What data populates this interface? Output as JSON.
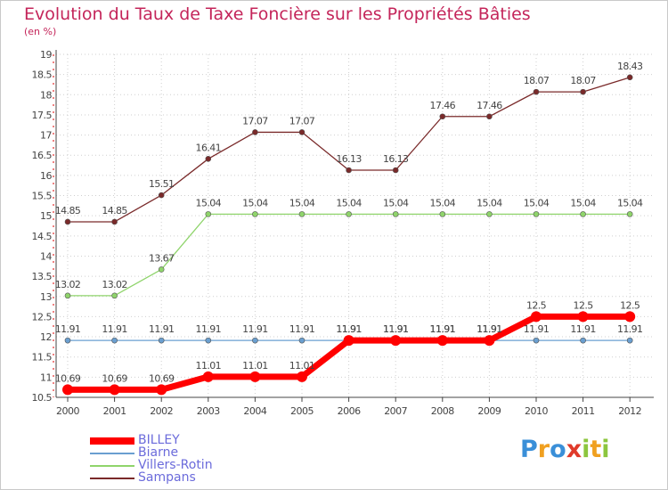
{
  "title": "Evolution du Taux de Taxe Foncière sur les Propriétés Bâties",
  "unit_label": "(en %)",
  "chart_data": {
    "type": "line",
    "title": "Evolution du Taux de Taxe Foncière sur les Propriétés Bâties",
    "ylabel": "(en %)",
    "xlabel": "",
    "ylim": [
      10.5,
      19
    ],
    "grid": true,
    "x": [
      "2000",
      "2001",
      "2002",
      "2003",
      "2004",
      "2005",
      "2006",
      "2007",
      "2008",
      "2009",
      "2010",
      "2011",
      "2012"
    ],
    "yticks": [
      "10.5",
      "11",
      "11.5",
      "12",
      "12.5",
      "13",
      "13.5",
      "14",
      "14.5",
      "15",
      "15.5",
      "16",
      "16.5",
      "17",
      "17.5",
      "18",
      "18.5",
      "19"
    ],
    "series": [
      {
        "name": "Sampans",
        "color": "#7a2a2a",
        "values": [
          14.85,
          14.85,
          15.51,
          16.41,
          17.07,
          17.07,
          16.13,
          16.13,
          17.46,
          17.46,
          18.07,
          18.07,
          18.43
        ],
        "labels": [
          "14.85",
          "14.85",
          "15.51",
          "16.41",
          "17.07",
          "17.07",
          "16.13",
          "16.13",
          "17.46",
          "17.46",
          "18.07",
          "18.07",
          "18.43"
        ]
      },
      {
        "name": "Villers-Rotin",
        "color": "#8fd46b",
        "values": [
          13.02,
          13.02,
          13.67,
          15.04,
          15.04,
          15.04,
          15.04,
          15.04,
          15.04,
          15.04,
          15.04,
          15.04,
          15.04
        ],
        "labels": [
          "13.02",
          "13.02",
          "13.67",
          "15.04",
          "15.04",
          "15.04",
          "15.04",
          "15.04",
          "15.04",
          "15.04",
          "15.04",
          "15.04",
          "15.04"
        ]
      },
      {
        "name": "Biarne",
        "color": "#6a9fd0",
        "values": [
          11.91,
          11.91,
          11.91,
          11.91,
          11.91,
          11.91,
          11.91,
          11.91,
          11.91,
          11.91,
          11.91,
          11.91,
          11.91
        ],
        "labels": [
          "11.91",
          "11.91",
          "11.91",
          "11.91",
          "11.91",
          "11.91",
          "11.91",
          "11.91",
          "11.91",
          "11.91",
          "11.91",
          "11.91",
          "11.91"
        ]
      },
      {
        "name": "BILLEY",
        "color": "#ff0000",
        "values": [
          10.69,
          10.69,
          10.69,
          11.01,
          11.01,
          11.01,
          11.91,
          11.91,
          11.91,
          11.91,
          12.5,
          12.5,
          12.5
        ],
        "labels": [
          "10.69",
          "10.69",
          "10.69",
          "11.01",
          "11.01",
          "11.01",
          "11.91",
          "11.91",
          "11.91",
          "11.91",
          "12.5",
          "12.5",
          "12.5"
        ]
      }
    ]
  },
  "legend": [
    {
      "label": "BILLEY",
      "color": "#ff0000"
    },
    {
      "label": "Biarne",
      "color": "#6a9fd0"
    },
    {
      "label": "Villers-Rotin",
      "color": "#8fd46b"
    },
    {
      "label": "Sampans",
      "color": "#7a2a2a"
    }
  ],
  "logo": {
    "letters": [
      "P",
      "r",
      "o",
      "x",
      "i",
      "t",
      "i"
    ],
    "colors": [
      "#3a8fd8",
      "#f0a020",
      "#3a8fd8",
      "#e03a2a",
      "#8cc63e",
      "#f0a020",
      "#8cc63e"
    ]
  }
}
